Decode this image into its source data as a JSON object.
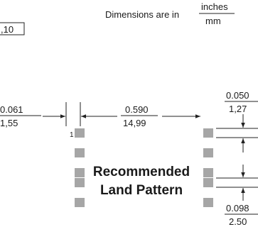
{
  "header": {
    "prefix": "Dimensions are in",
    "unit_top": "inches",
    "unit_bottom": "mm"
  },
  "clipped_ref": ",10",
  "pattern": {
    "line1": "Recommended",
    "line2": "Land Pattern",
    "pin1_label": "1",
    "pads_per_side": 5
  },
  "dims": {
    "left_width": {
      "inches": "0.061",
      "mm": "1,55"
    },
    "span": {
      "inches": "0.590",
      "mm": "14,99"
    },
    "pad_height": {
      "inches": "0.050",
      "mm": "1,27"
    },
    "pitch": {
      "inches": "0.098",
      "mm": "2.50"
    }
  },
  "colors": {
    "pad": "#a6a6a6",
    "line": "#222222"
  }
}
